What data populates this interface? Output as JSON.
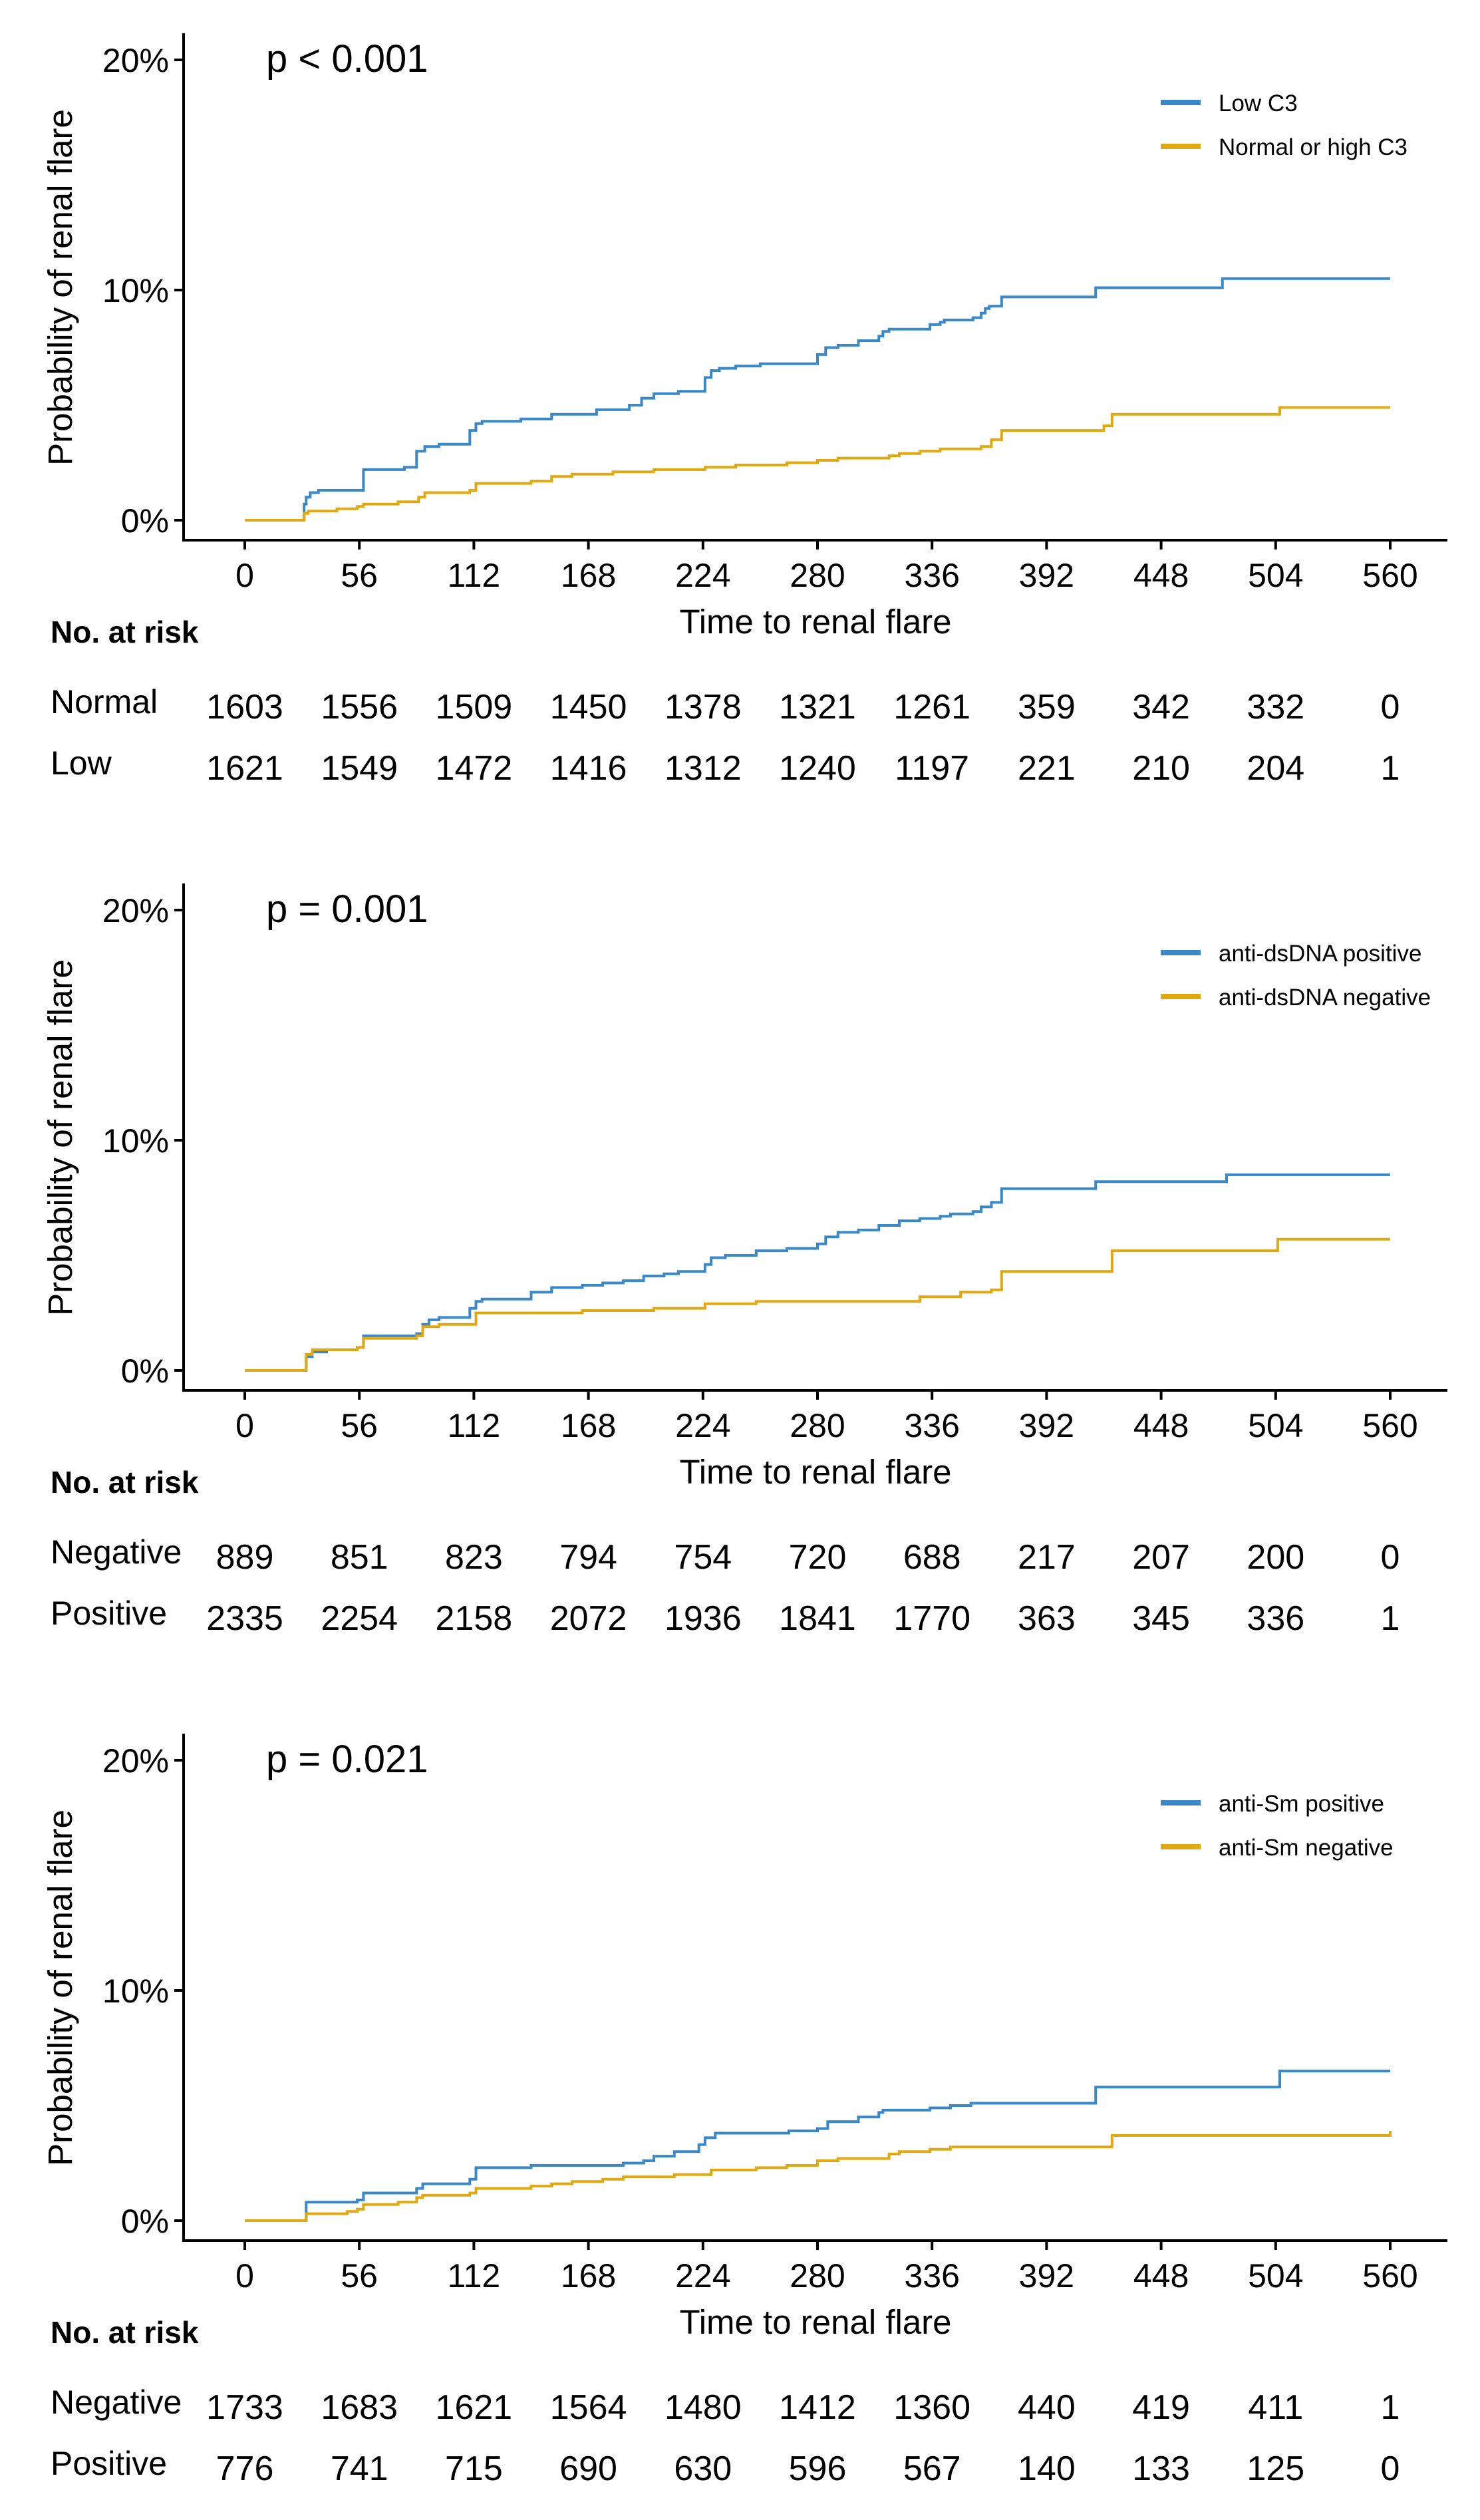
{
  "colors": {
    "blue": "#3A88C8",
    "gold": "#E0A912",
    "axis": "#000000"
  },
  "chart_data": [
    {
      "type": "line",
      "subtype": "kaplan-meier cumulative incidence (step)",
      "annotation": "p < 0.001",
      "xlabel": "Time to renal flare",
      "ylabel": "Probability of renal flare",
      "xlim": [
        0,
        560
      ],
      "ylim": [
        0,
        20
      ],
      "x_ticks": [
        0,
        56,
        112,
        168,
        224,
        280,
        336,
        392,
        448,
        504,
        560
      ],
      "y_ticks": [
        0,
        10,
        20
      ],
      "y_tick_labels": [
        "0%",
        "10%",
        "20%"
      ],
      "legend_position": "top-right",
      "series": [
        {
          "name": "Low C3",
          "color": "#3A88C8",
          "x": [
            0,
            28,
            29,
            30,
            32,
            36,
            55,
            58,
            65,
            78,
            84,
            88,
            95,
            110,
            113,
            116,
            120,
            135,
            150,
            168,
            172,
            180,
            188,
            194,
            200,
            212,
            225,
            228,
            232,
            240,
            252,
            266,
            280,
            284,
            290,
            300,
            310,
            312,
            315,
            320,
            335,
            340,
            342,
            350,
            356,
            360,
            362,
            364,
            370,
            410,
            416,
            435,
            475,
            478,
            560
          ],
          "y": [
            0,
            0,
            0.7,
            1.0,
            1.2,
            1.3,
            1.3,
            2.2,
            2.2,
            2.3,
            3.0,
            3.2,
            3.3,
            3.9,
            4.2,
            4.3,
            4.3,
            4.4,
            4.6,
            4.6,
            4.8,
            4.8,
            5.0,
            5.3,
            5.5,
            5.6,
            6.2,
            6.5,
            6.6,
            6.7,
            6.8,
            6.8,
            7.2,
            7.5,
            7.6,
            7.8,
            8.0,
            8.2,
            8.3,
            8.3,
            8.5,
            8.6,
            8.7,
            8.7,
            8.8,
            9.0,
            9.2,
            9.3,
            9.7,
            9.7,
            10.1,
            10.1,
            10.1,
            10.5,
            10.5
          ]
        },
        {
          "name": "Normal or high C3",
          "color": "#E0A912",
          "x": [
            0,
            28,
            29,
            31,
            45,
            55,
            58,
            65,
            75,
            85,
            88,
            95,
            110,
            113,
            120,
            140,
            150,
            160,
            170,
            180,
            190,
            200,
            210,
            225,
            240,
            250,
            265,
            280,
            290,
            300,
            315,
            320,
            330,
            340,
            360,
            365,
            370,
            420,
            424,
            478,
            503,
            506,
            560
          ],
          "y": [
            0,
            0,
            0.3,
            0.4,
            0.5,
            0.6,
            0.7,
            0.7,
            0.8,
            1.0,
            1.2,
            1.2,
            1.3,
            1.6,
            1.6,
            1.7,
            1.9,
            2.0,
            2.0,
            2.1,
            2.1,
            2.2,
            2.2,
            2.3,
            2.4,
            2.4,
            2.5,
            2.6,
            2.7,
            2.7,
            2.8,
            2.9,
            3.0,
            3.1,
            3.2,
            3.5,
            3.9,
            4.1,
            4.6,
            4.6,
            4.6,
            4.9,
            4.9
          ]
        }
      ],
      "risk_table": {
        "header": "No. at risk",
        "rows": [
          {
            "label": "Normal",
            "values": [
              "1603",
              "1556",
              "1509",
              "1450",
              "1378",
              "1321",
              "1261",
              "359",
              "342",
              "332",
              "0"
            ]
          },
          {
            "label": "Low",
            "values": [
              "1621",
              "1549",
              "1472",
              "1416",
              "1312",
              "1240",
              "1197",
              "221",
              "210",
              "204",
              "1"
            ]
          }
        ]
      }
    },
    {
      "type": "line",
      "subtype": "kaplan-meier cumulative incidence (step)",
      "annotation": "p = 0.001",
      "xlabel": "Time to renal flare",
      "ylabel": "Probability of renal flare",
      "xlim": [
        0,
        560
      ],
      "ylim": [
        0,
        20
      ],
      "x_ticks": [
        0,
        56,
        112,
        168,
        224,
        280,
        336,
        392,
        448,
        504,
        560
      ],
      "y_ticks": [
        0,
        10,
        20
      ],
      "y_tick_labels": [
        "0%",
        "10%",
        "20%"
      ],
      "legend_position": "top-right",
      "series": [
        {
          "name": "anti-dsDNA positive",
          "color": "#3A88C8",
          "x": [
            0,
            28,
            30,
            33,
            40,
            45,
            55,
            58,
            70,
            84,
            87,
            90,
            95,
            110,
            113,
            116,
            125,
            140,
            150,
            165,
            175,
            185,
            195,
            205,
            212,
            225,
            228,
            235,
            250,
            265,
            280,
            284,
            290,
            300,
            310,
            320,
            330,
            340,
            345,
            356,
            360,
            365,
            370,
            412,
            416,
            476,
            480,
            560
          ],
          "y": [
            0,
            0,
            0.6,
            0.8,
            0.9,
            0.9,
            1.0,
            1.5,
            1.5,
            1.6,
            2.0,
            2.2,
            2.3,
            2.7,
            3.0,
            3.1,
            3.1,
            3.4,
            3.6,
            3.7,
            3.8,
            3.9,
            4.1,
            4.2,
            4.3,
            4.6,
            4.9,
            5.0,
            5.2,
            5.3,
            5.5,
            5.8,
            6.0,
            6.1,
            6.3,
            6.5,
            6.6,
            6.7,
            6.8,
            6.9,
            7.1,
            7.3,
            7.9,
            7.9,
            8.2,
            8.2,
            8.5,
            8.5
          ]
        },
        {
          "name": "anti-dsDNA negative",
          "color": "#E0A912",
          "x": [
            0,
            28,
            30,
            33,
            45,
            55,
            58,
            70,
            84,
            87,
            95,
            110,
            113,
            120,
            165,
            180,
            200,
            225,
            230,
            250,
            280,
            300,
            310,
            330,
            340,
            350,
            365,
            370,
            420,
            424,
            500,
            505,
            560
          ],
          "y": [
            0,
            0,
            0.7,
            0.9,
            0.9,
            1.0,
            1.4,
            1.4,
            1.5,
            1.9,
            2.0,
            2.0,
            2.5,
            2.5,
            2.6,
            2.6,
            2.7,
            2.9,
            2.9,
            3.0,
            3.0,
            3.0,
            3.0,
            3.2,
            3.2,
            3.4,
            3.5,
            4.3,
            4.3,
            5.2,
            5.2,
            5.7,
            5.7
          ]
        }
      ],
      "risk_table": {
        "header": "No. at risk",
        "rows": [
          {
            "label": "Negative",
            "values": [
              "889",
              "851",
              "823",
              "794",
              "754",
              "720",
              "688",
              "217",
              "207",
              "200",
              "0"
            ]
          },
          {
            "label": "Positive",
            "values": [
              "2335",
              "2254",
              "2158",
              "2072",
              "1936",
              "1841",
              "1770",
              "363",
              "345",
              "336",
              "1"
            ]
          }
        ]
      }
    },
    {
      "type": "line",
      "subtype": "kaplan-meier cumulative incidence (step)",
      "annotation": "p = 0.021",
      "xlabel": "Time to renal flare",
      "ylabel": "Probability of renal flare",
      "xlim": [
        0,
        560
      ],
      "ylim": [
        0,
        20
      ],
      "x_ticks": [
        0,
        56,
        112,
        168,
        224,
        280,
        336,
        392,
        448,
        504,
        560
      ],
      "y_ticks": [
        0,
        10,
        20
      ],
      "y_tick_labels": [
        "0%",
        "10%",
        "20%"
      ],
      "legend_position": "top-right",
      "series": [
        {
          "name": "anti-Sm positive",
          "color": "#3A88C8",
          "x": [
            0,
            28,
            30,
            45,
            55,
            58,
            65,
            84,
            87,
            95,
            110,
            113,
            120,
            140,
            175,
            185,
            195,
            200,
            210,
            222,
            225,
            230,
            252,
            266,
            280,
            285,
            300,
            310,
            312,
            320,
            335,
            345,
            355,
            360,
            370,
            412,
            416,
            503,
            506,
            560
          ],
          "y": [
            0,
            0,
            0.8,
            0.8,
            0.9,
            1.2,
            1.2,
            1.4,
            1.6,
            1.6,
            1.8,
            2.3,
            2.3,
            2.4,
            2.4,
            2.5,
            2.6,
            2.8,
            3.0,
            3.3,
            3.6,
            3.8,
            3.8,
            3.9,
            4.0,
            4.3,
            4.5,
            4.7,
            4.8,
            4.8,
            4.9,
            5.0,
            5.1,
            5.1,
            5.1,
            5.1,
            5.8,
            5.8,
            6.5,
            6.5
          ]
        },
        {
          "name": "anti-Sm negative",
          "color": "#E0A912",
          "x": [
            0,
            28,
            30,
            35,
            50,
            55,
            58,
            65,
            75,
            84,
            87,
            95,
            110,
            113,
            120,
            140,
            150,
            160,
            175,
            185,
            195,
            210,
            228,
            233,
            250,
            265,
            280,
            290,
            300,
            315,
            320,
            335,
            345,
            355,
            420,
            424,
            560
          ],
          "y": [
            0,
            0,
            0.3,
            0.3,
            0.4,
            0.5,
            0.7,
            0.7,
            0.8,
            1.0,
            1.1,
            1.1,
            1.2,
            1.4,
            1.4,
            1.5,
            1.6,
            1.7,
            1.8,
            1.9,
            1.9,
            2.0,
            2.2,
            2.2,
            2.3,
            2.4,
            2.6,
            2.7,
            2.7,
            2.9,
            3.0,
            3.1,
            3.2,
            3.2,
            3.2,
            3.7,
            3.9
          ]
        }
      ],
      "risk_table": {
        "header": "No. at risk",
        "rows": [
          {
            "label": "Negative",
            "values": [
              "1733",
              "1683",
              "1621",
              "1564",
              "1480",
              "1412",
              "1360",
              "440",
              "419",
              "411",
              "1"
            ]
          },
          {
            "label": "Positive",
            "values": [
              "776",
              "741",
              "715",
              "690",
              "630",
              "596",
              "567",
              "140",
              "133",
              "125",
              "0"
            ]
          }
        ]
      }
    }
  ]
}
